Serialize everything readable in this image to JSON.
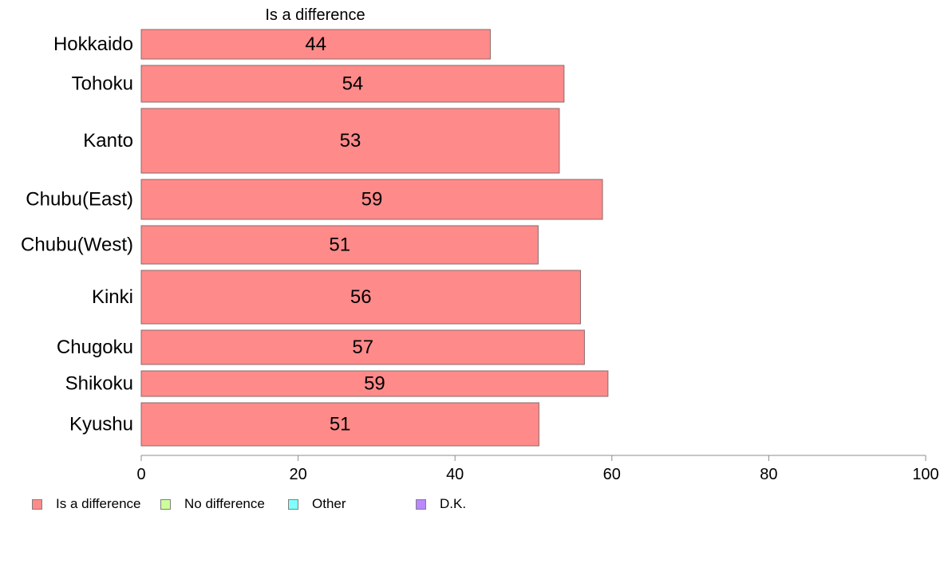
{
  "chart_data": {
    "type": "bar",
    "orientation": "horizontal",
    "title": "Is a difference",
    "categories": [
      "Hokkaido",
      "Tohoku",
      "Kanto",
      "Chubu(East)",
      "Chubu(West)",
      "Kinki",
      "Chugoku",
      "Shikoku",
      "Kyushu"
    ],
    "series": [
      {
        "name": "Is a difference",
        "values": [
          44.5,
          53.9,
          53.3,
          58.8,
          50.6,
          56.0,
          56.5,
          59.5,
          50.7
        ],
        "labels": [
          "44",
          "54",
          "53",
          "59",
          "51",
          "56",
          "57",
          "59",
          "51"
        ]
      }
    ],
    "xlim": [
      0,
      100
    ],
    "xticks": [
      0,
      20,
      40,
      60,
      80,
      100
    ],
    "xlabel": "",
    "ylabel": "",
    "grid": false,
    "legend_position": "bottom",
    "legend": [
      {
        "label": "Is a difference",
        "color": "#ff8a8a"
      },
      {
        "label": "No difference",
        "color": "#ccff99"
      },
      {
        "label": "Other",
        "color": "#80ffff"
      },
      {
        "label": "D.K.",
        "color": "#bb88ff"
      }
    ],
    "bar_color": "#ff8a8a",
    "bar_edge_color": "#8a6a6a",
    "axis_color": "#8c8c8c"
  }
}
